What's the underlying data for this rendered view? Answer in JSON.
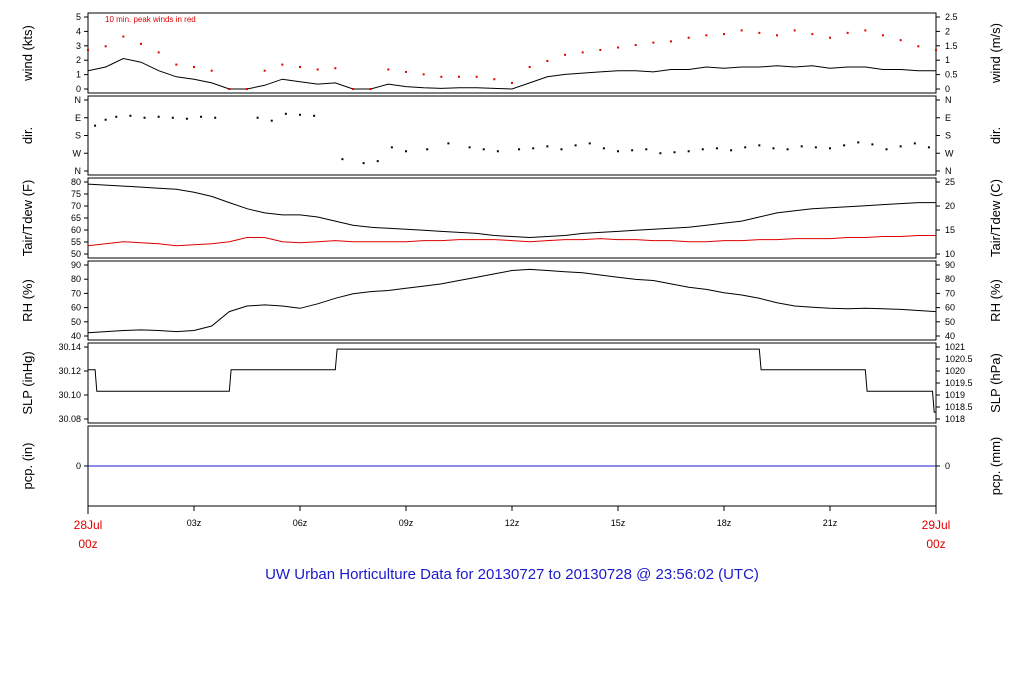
{
  "footer_title": "UW Urban Horticulture Data for 20130727  to  20130728 @ 23:56:02  (UTC)",
  "colors": {
    "black": "#000000",
    "red": "#e00000",
    "blue": "#1a1acc"
  },
  "chart_data": [
    {
      "type": "line",
      "panel": "wind",
      "ylabel": "wind (kts)",
      "ylabel_right": "wind (m/s)",
      "annotation": "10 min. peak winds in red",
      "ylim": [
        0,
        5.9
      ],
      "yticks": [
        "0",
        "1",
        "2",
        "3",
        "4",
        "5"
      ],
      "yticks_right": [
        "0",
        "0.5",
        "1",
        "1.5",
        "2",
        "2.5"
      ],
      "x_hours": [
        0,
        0.5,
        1,
        1.5,
        2,
        2.5,
        3,
        3.5,
        4,
        4.5,
        5,
        5.5,
        6,
        6.5,
        7,
        7.5,
        8,
        8.5,
        9,
        9.5,
        10,
        10.5,
        11,
        11.5,
        12,
        12.5,
        13,
        13.5,
        14,
        14.5,
        15,
        15.5,
        16,
        16.5,
        17,
        17.5,
        18,
        18.5,
        19,
        19.5,
        20,
        20.5,
        21,
        21.5,
        22,
        22.5,
        23,
        23.5,
        24
      ],
      "series": [
        {
          "name": "wind",
          "color": "#000000",
          "values": [
            1.5,
            1.8,
            2.5,
            2.2,
            1.5,
            1.0,
            0.8,
            0.5,
            0,
            0,
            0.3,
            0.8,
            0.6,
            0.4,
            0.5,
            0,
            0,
            0.4,
            0.2,
            0.1,
            0.05,
            0.1,
            0.1,
            0.05,
            0,
            0.5,
            1.0,
            1.2,
            1.3,
            1.4,
            1.5,
            1.5,
            1.4,
            1.6,
            1.6,
            1.8,
            1.7,
            1.8,
            1.8,
            1.9,
            1.8,
            1.9,
            1.7,
            1.8,
            1.8,
            1.6,
            1.6,
            1.5,
            1.5
          ]
        },
        {
          "name": "10 min. peak winds",
          "color": "#e00000",
          "values": [
            3.2,
            3.5,
            4.3,
            3.7,
            3.0,
            2.0,
            1.8,
            1.5,
            0,
            0,
            1.5,
            2.0,
            1.8,
            1.6,
            1.7,
            0,
            0,
            1.6,
            1.4,
            1.2,
            1.0,
            1.0,
            1.0,
            0.8,
            0.5,
            1.8,
            2.3,
            2.8,
            3.0,
            3.2,
            3.4,
            3.6,
            3.8,
            3.9,
            4.2,
            4.4,
            4.5,
            4.8,
            4.6,
            4.4,
            4.8,
            4.5,
            4.2,
            4.6,
            4.8,
            4.4,
            4.0,
            3.5,
            3.2
          ]
        }
      ]
    },
    {
      "type": "scatter",
      "panel": "direction",
      "ylabel": "dir.",
      "ylabel_right": "dir.",
      "ylim": [
        0,
        360
      ],
      "yticks": [
        "N",
        "W",
        "S",
        "E",
        "N"
      ],
      "yticks_right": [
        "N",
        "W",
        "S",
        "E",
        "N"
      ],
      "x_hours": [
        0.2,
        0.5,
        0.8,
        1.2,
        1.6,
        2.0,
        2.4,
        2.8,
        3.2,
        3.6,
        4.8,
        5.2,
        5.6,
        6.0,
        6.4,
        7.2,
        7.8,
        8.2,
        8.6,
        9.0,
        9.6,
        10.2,
        10.8,
        11.2,
        11.6,
        12.2,
        12.6,
        13.0,
        13.4,
        13.8,
        14.2,
        14.6,
        15.0,
        15.4,
        15.8,
        16.2,
        16.6,
        17.0,
        17.4,
        17.8,
        18.2,
        18.6,
        19.0,
        19.4,
        19.8,
        20.2,
        20.6,
        21.0,
        21.4,
        21.8,
        22.2,
        22.6,
        23.0,
        23.4,
        23.8
      ],
      "values": [
        230,
        260,
        275,
        280,
        270,
        275,
        270,
        265,
        275,
        270,
        270,
        255,
        290,
        285,
        280,
        60,
        40,
        50,
        120,
        100,
        110,
        140,
        120,
        110,
        100,
        110,
        115,
        125,
        110,
        130,
        140,
        115,
        100,
        105,
        110,
        90,
        95,
        100,
        110,
        115,
        105,
        120,
        130,
        115,
        110,
        125,
        120,
        115,
        130,
        145,
        135,
        110,
        125,
        140,
        120
      ]
    },
    {
      "type": "line",
      "panel": "temperature",
      "ylabel": "Tair/Tdew (F)",
      "ylabel_right": "Tair/Tdew (C)",
      "ylim": [
        45,
        80
      ],
      "yticks": [
        "50",
        "55",
        "60",
        "65",
        "70",
        "75",
        "80"
      ],
      "yticks_right": [
        "10",
        "15",
        "20",
        "25"
      ],
      "x_hours": [
        0,
        0.5,
        1,
        1.5,
        2,
        2.5,
        3,
        3.5,
        4,
        4.5,
        5,
        5.5,
        6,
        6.5,
        7,
        7.5,
        8,
        8.5,
        9,
        9.5,
        10,
        10.5,
        11,
        11.5,
        12,
        12.5,
        13,
        13.5,
        14,
        14.5,
        15,
        15.5,
        16,
        16.5,
        17,
        17.5,
        18,
        18.5,
        19,
        19.5,
        20,
        20.5,
        21,
        21.5,
        22,
        22.5,
        23,
        23.5,
        24
      ],
      "series": [
        {
          "name": "Tair",
          "color": "#000000",
          "values": [
            79,
            78.5,
            78,
            77.5,
            77,
            76.5,
            75,
            73,
            70,
            67,
            65,
            64,
            64,
            63,
            61,
            59,
            58,
            57.5,
            57,
            56.5,
            56,
            55.5,
            55,
            54,
            53.5,
            53,
            53.5,
            54,
            55,
            55.5,
            56,
            56.5,
            57,
            57.5,
            58,
            59,
            60,
            61,
            63,
            65,
            66,
            67,
            67.5,
            68,
            68.5,
            69,
            69.5,
            70,
            70
          ]
        },
        {
          "name": "Tdew",
          "color": "#e00000",
          "values": [
            49,
            50,
            51,
            50.5,
            50,
            49,
            49.5,
            50,
            51,
            53,
            53,
            51,
            50.5,
            51,
            51.5,
            51,
            51,
            51,
            51,
            51.5,
            51.5,
            52,
            52,
            52,
            51.5,
            51,
            51.5,
            52,
            52,
            52.5,
            52,
            52,
            51.5,
            51.5,
            51,
            51,
            51.5,
            51.5,
            52,
            52,
            52.5,
            52.5,
            52.5,
            53,
            53,
            53.5,
            53.5,
            54,
            54
          ]
        }
      ]
    },
    {
      "type": "line",
      "panel": "humidity",
      "ylabel": "RH (%)",
      "ylabel_right": "RH (%)",
      "ylim": [
        33,
        97
      ],
      "yticks": [
        "40",
        "50",
        "60",
        "70",
        "80",
        "90"
      ],
      "yticks_right": [
        "40",
        "50",
        "60",
        "70",
        "80",
        "90"
      ],
      "x_hours": [
        0,
        0.5,
        1,
        1.5,
        2,
        2.5,
        3,
        3.5,
        4,
        4.5,
        5,
        5.5,
        6,
        6.5,
        7,
        7.5,
        8,
        8.5,
        9,
        9.5,
        10,
        10.5,
        11,
        11.5,
        12,
        12.5,
        13,
        13.5,
        14,
        14.5,
        15,
        15.5,
        16,
        16.5,
        17,
        17.5,
        18,
        18.5,
        19,
        19.5,
        20,
        20.5,
        21,
        21.5,
        22,
        22.5,
        23,
        23.5,
        24
      ],
      "series": [
        {
          "name": "RH",
          "color": "#000000",
          "values": [
            36,
            37,
            38,
            38.5,
            38,
            37,
            38,
            42,
            55,
            60,
            61,
            60,
            58,
            62,
            67,
            71,
            73,
            74,
            76,
            78,
            80,
            83,
            86,
            89,
            92,
            93,
            92,
            91,
            90,
            88,
            86,
            84,
            83,
            80,
            77,
            75,
            72,
            70,
            67,
            63,
            60,
            59,
            58,
            57.5,
            58,
            57.5,
            57,
            56,
            55
          ]
        }
      ]
    },
    {
      "type": "line",
      "panel": "pressure",
      "ylabel": "SLP (inHg)",
      "ylabel_right": "SLP (hPa)",
      "ylim": [
        30.053,
        30.157
      ],
      "yticks": [
        "30.08",
        "30.10",
        "30.12",
        "30.14"
      ],
      "yticks_right": [
        "1018",
        "1018.5",
        "1019",
        "1019.5",
        "1020",
        "1020.5",
        "1021"
      ],
      "x_hours": [
        0,
        0.2,
        0.25,
        4.0,
        4.05,
        7.0,
        7.05,
        19.0,
        19.05,
        22.0,
        22.05,
        23.9,
        23.95,
        24
      ],
      "series": [
        {
          "name": "SLP",
          "color": "#000000",
          "values": [
            30.124,
            30.124,
            30.093,
            30.093,
            30.124,
            30.124,
            30.154,
            30.154,
            30.124,
            30.124,
            30.093,
            30.093,
            30.063,
            30.063
          ]
        }
      ]
    },
    {
      "type": "line",
      "panel": "precipitation",
      "ylabel": "pcp. (in)",
      "ylabel_right": "pcp. (mm)",
      "ylim": [
        -0.5,
        0.5
      ],
      "yticks": [
        "0"
      ],
      "yticks_right": [
        "0"
      ],
      "x_hours": [
        0,
        24
      ],
      "series": [
        {
          "name": "pcp",
          "color": "#1a1acc",
          "values": [
            0,
            0
          ]
        }
      ]
    }
  ],
  "x_axis": {
    "tick_labels": [
      "03z",
      "06z",
      "09z",
      "12z",
      "15z",
      "18z",
      "21z"
    ],
    "tick_hours": [
      3,
      6,
      9,
      12,
      15,
      18,
      21
    ],
    "start_date": "28Jul",
    "start_time": "00z",
    "end_date": "29Jul",
    "end_time": "00z"
  }
}
